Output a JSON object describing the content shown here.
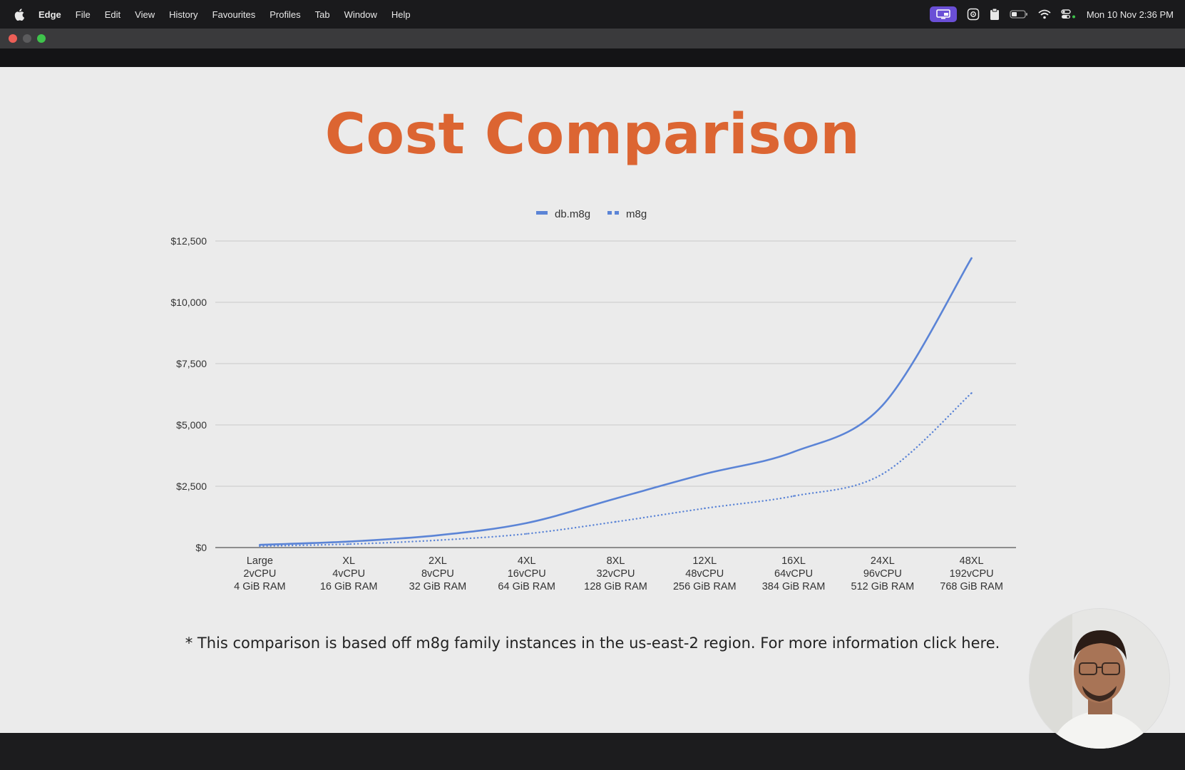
{
  "menubar": {
    "app_name": "Edge",
    "items": [
      "File",
      "Edit",
      "View",
      "History",
      "Favourites",
      "Profiles",
      "Tab",
      "Window",
      "Help"
    ],
    "clock": "Mon 10 Nov  2:36 PM",
    "icons": [
      "apple-logo-icon",
      "screen-share-icon",
      "settings-gear-icon",
      "clipboard-icon",
      "battery-icon",
      "wifi-icon",
      "control-center-icon"
    ]
  },
  "window": {
    "traffic_lights": [
      "close",
      "minimize",
      "zoom"
    ]
  },
  "slide": {
    "title": "Cost Comparison",
    "footnote": "* This comparison is based off m8g  family instances in the us-east-2 region. For more information click here.",
    "title_color": "#dc6532"
  },
  "chart_data": {
    "type": "line",
    "title": "",
    "xlabel": "",
    "ylabel": "",
    "legend_position": "top-center",
    "grid": true,
    "ylim": [
      0,
      12500
    ],
    "y_ticks": [
      0,
      2500,
      5000,
      7500,
      10000,
      12500
    ],
    "y_tick_labels": [
      "$0",
      "$2,500",
      "$5,000",
      "$7,500",
      "$10,000",
      "$12,500"
    ],
    "categories": [
      [
        "Large",
        "2vCPU",
        "4 GiB RAM"
      ],
      [
        "XL",
        "4vCPU",
        "16 GiB RAM"
      ],
      [
        "2XL",
        "8vCPU",
        "32 GiB RAM"
      ],
      [
        "4XL",
        "16vCPU",
        "64 GiB RAM"
      ],
      [
        "8XL",
        "32vCPU",
        "128 GiB RAM"
      ],
      [
        "12XL",
        "48vCPU",
        "256 GiB RAM"
      ],
      [
        "16XL",
        "64vCPU",
        "384 GiB RAM"
      ],
      [
        "24XL",
        "96vCPU",
        "512 GiB RAM"
      ],
      [
        "48XL",
        "192vCPU",
        "768 GiB RAM"
      ]
    ],
    "series": [
      {
        "name": "db.m8g",
        "style": "solid",
        "color": "#5b84d6",
        "values": [
          110,
          245,
          500,
          1000,
          2000,
          3000,
          3900,
          5800,
          11800
        ]
      },
      {
        "name": "m8g",
        "style": "dotted",
        "color": "#5b84d6",
        "values": [
          60,
          140,
          300,
          560,
          1050,
          1600,
          2100,
          3000,
          6300
        ]
      }
    ]
  }
}
